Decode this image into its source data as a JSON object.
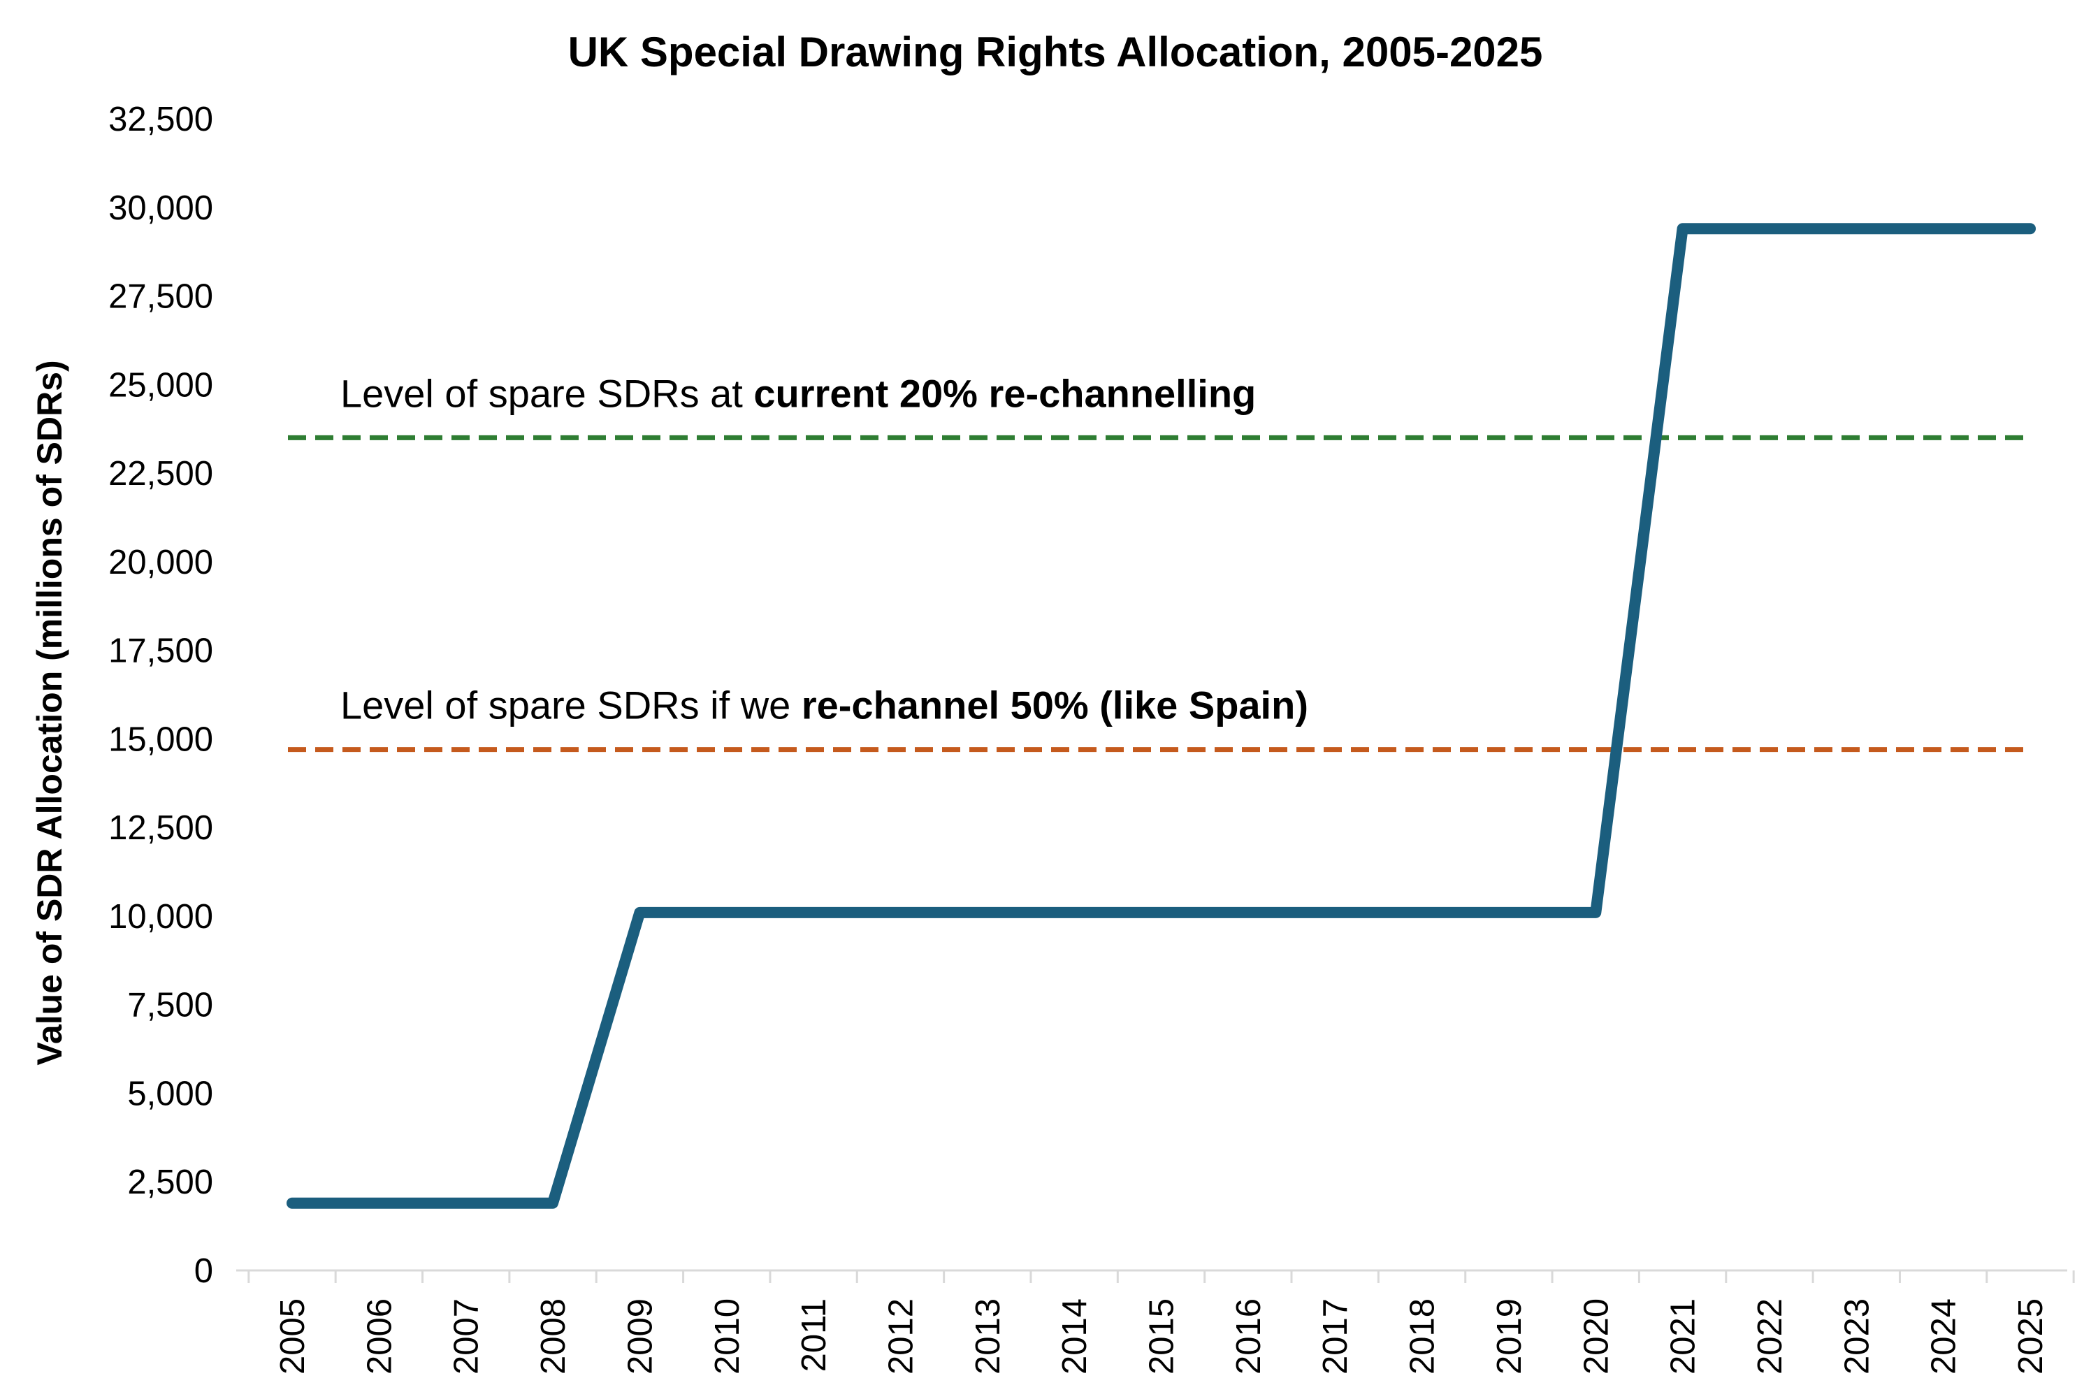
{
  "chart_data": {
    "type": "line",
    "title": "UK Special Drawing Rights Allocation, 2005-2025",
    "xlabel": "",
    "ylabel": "Value of SDR Allocation (millions of SDRs)",
    "ylim": [
      0,
      32500
    ],
    "ytick_values": [
      0,
      2500,
      5000,
      7500,
      10000,
      12500,
      15000,
      17500,
      20000,
      22500,
      25000,
      27500,
      30000,
      32500
    ],
    "ytick_labels": [
      "0",
      "2,500",
      "5,000",
      "7,500",
      "10,000",
      "12,500",
      "15,000",
      "17,500",
      "20,000",
      "22,500",
      "25,000",
      "27,500",
      "30,000",
      "32,500"
    ],
    "categories": [
      "2005",
      "2006",
      "2007",
      "2008",
      "2009",
      "2010",
      "2011",
      "2012",
      "2013",
      "2014",
      "2015",
      "2016",
      "2017",
      "2018",
      "2019",
      "2020",
      "2021",
      "2022",
      "2023",
      "2024",
      "2025"
    ],
    "grid": false,
    "legend": "none",
    "series": [
      {
        "color": "#1b5e7e",
        "values": [
          1900,
          1900,
          1900,
          1900,
          10100,
          10100,
          10100,
          10100,
          10100,
          10100,
          10100,
          10100,
          10100,
          10100,
          10100,
          10100,
          29400,
          29400,
          29400,
          29400,
          29400
        ]
      }
    ],
    "reference_lines": [
      {
        "value": 23500,
        "color": "#2e7d32",
        "style": "dashed",
        "label_normal": "Level of spare SDRs at ",
        "label_bold": "current 20% re-channelling"
      },
      {
        "value": 14700,
        "color": "#c55a1d",
        "style": "dashed",
        "label_normal": "Level of spare SDRs if we ",
        "label_bold": "re-channel 50% (like Spain)"
      }
    ]
  }
}
